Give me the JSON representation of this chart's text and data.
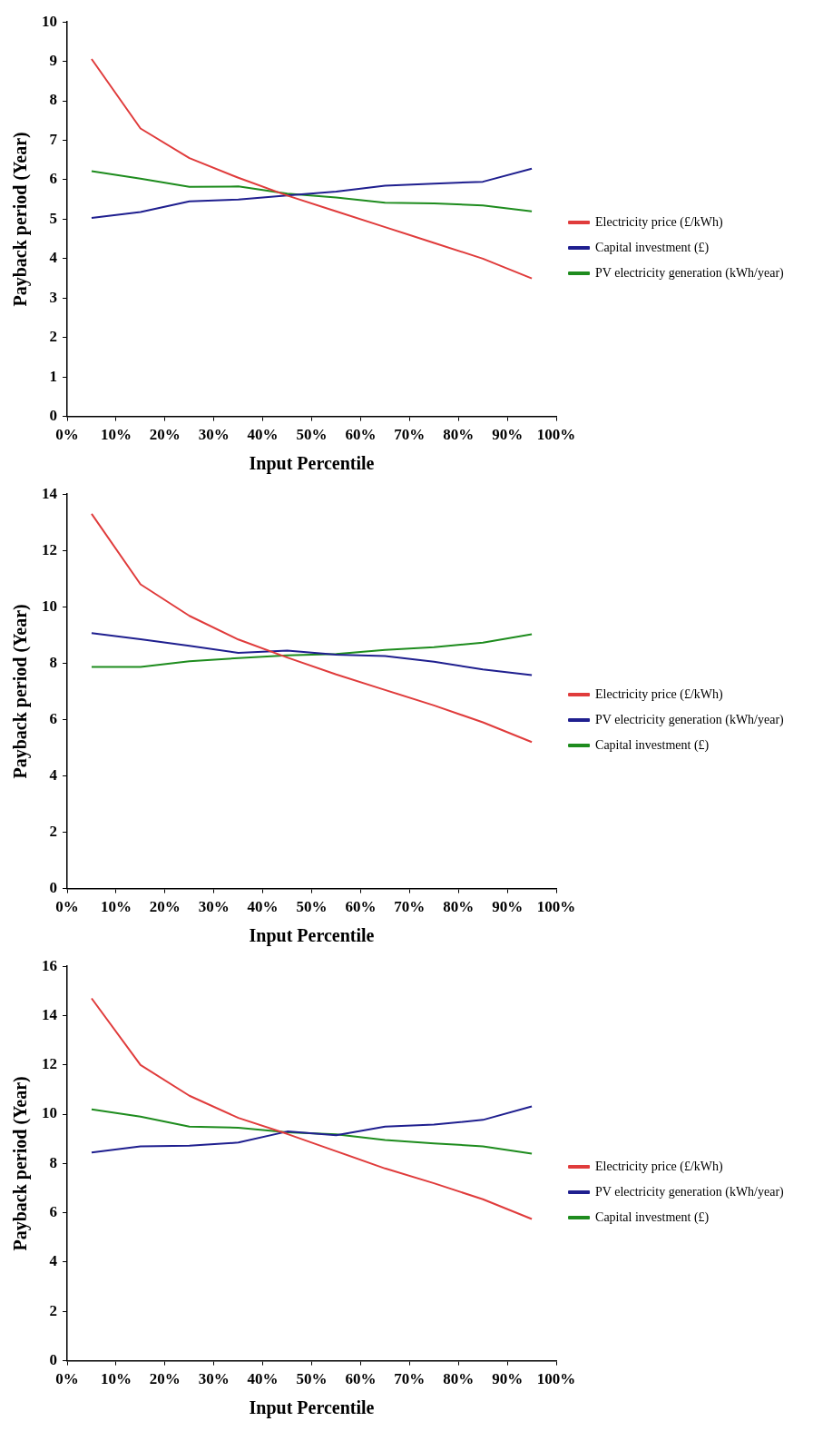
{
  "chart_data": [
    {
      "type": "line",
      "xlabel": "Input Percentile",
      "ylabel": "Payback period (Year)",
      "x": [
        5,
        15,
        25,
        35,
        45,
        55,
        65,
        75,
        85,
        95
      ],
      "xlim": [
        0,
        100
      ],
      "xticks": [
        {
          "value": 0,
          "label": "0%"
        },
        {
          "value": 10,
          "label": "10%"
        },
        {
          "value": 20,
          "label": "20%"
        },
        {
          "value": 30,
          "label": "30%"
        },
        {
          "value": 40,
          "label": "40%"
        },
        {
          "value": 50,
          "label": "50%"
        },
        {
          "value": 60,
          "label": "60%"
        },
        {
          "value": 70,
          "label": "70%"
        },
        {
          "value": 80,
          "label": "80%"
        },
        {
          "value": 90,
          "label": "90%"
        },
        {
          "value": 100,
          "label": "100%"
        }
      ],
      "ylim": [
        0,
        10
      ],
      "yticks": [
        0,
        1,
        2,
        3,
        4,
        5,
        6,
        7,
        8,
        9,
        10
      ],
      "grid": false,
      "legend": "right",
      "marker": "none",
      "line_style": "solid",
      "series": [
        {
          "name": "Electricity price (£/kWh)",
          "color": "#e03c3c",
          "values": [
            9.06,
            7.3,
            6.55,
            6.05,
            5.6,
            5.2,
            4.8,
            4.4,
            4.0,
            3.5
          ]
        },
        {
          "name": "Capital investment (£)",
          "color": "#1f1f8f",
          "values": [
            5.03,
            5.18,
            5.45,
            5.5,
            5.6,
            5.7,
            5.85,
            5.9,
            5.95,
            6.28
          ]
        },
        {
          "name": "PV electricity generation (kWh/year)",
          "color": "#1e8c1e",
          "values": [
            6.22,
            6.03,
            5.82,
            5.83,
            5.65,
            5.55,
            5.42,
            5.4,
            5.35,
            5.2
          ]
        }
      ]
    },
    {
      "type": "line",
      "xlabel": "Input Percentile",
      "ylabel": "Payback period (Year)",
      "x": [
        5,
        15,
        25,
        35,
        45,
        55,
        65,
        75,
        85,
        95
      ],
      "xlim": [
        0,
        100
      ],
      "xticks": [
        {
          "value": 0,
          "label": "0%"
        },
        {
          "value": 10,
          "label": "10%"
        },
        {
          "value": 20,
          "label": "20%"
        },
        {
          "value": 30,
          "label": "30%"
        },
        {
          "value": 40,
          "label": "40%"
        },
        {
          "value": 50,
          "label": "50%"
        },
        {
          "value": 60,
          "label": "60%"
        },
        {
          "value": 70,
          "label": "70%"
        },
        {
          "value": 80,
          "label": "80%"
        },
        {
          "value": 90,
          "label": "90%"
        },
        {
          "value": 100,
          "label": "100%"
        }
      ],
      "ylim": [
        0,
        14
      ],
      "yticks": [
        0,
        2,
        4,
        6,
        8,
        10,
        12,
        14
      ],
      "grid": false,
      "legend": "right",
      "marker": "none",
      "line_style": "solid",
      "series": [
        {
          "name": "Electricity price (£/kWh)",
          "color": "#e03c3c",
          "values": [
            13.3,
            10.8,
            9.68,
            8.84,
            8.2,
            7.6,
            7.05,
            6.5,
            5.9,
            5.2
          ]
        },
        {
          "name": "PV electricity generation (kWh/year)",
          "color": "#1f1f8f",
          "values": [
            9.07,
            8.85,
            8.62,
            8.37,
            8.45,
            8.3,
            8.25,
            8.05,
            7.78,
            7.58
          ]
        },
        {
          "name": "Capital investment (£)",
          "color": "#1e8c1e",
          "values": [
            7.87,
            7.87,
            8.07,
            8.18,
            8.28,
            8.33,
            8.47,
            8.57,
            8.73,
            9.03
          ]
        }
      ]
    },
    {
      "type": "line",
      "xlabel": "Input Percentile",
      "ylabel": "Payback period (Year)",
      "x": [
        5,
        15,
        25,
        35,
        45,
        55,
        65,
        75,
        85,
        95
      ],
      "xlim": [
        0,
        100
      ],
      "xticks": [
        {
          "value": 0,
          "label": "0%"
        },
        {
          "value": 10,
          "label": "10%"
        },
        {
          "value": 20,
          "label": "20%"
        },
        {
          "value": 30,
          "label": "30%"
        },
        {
          "value": 40,
          "label": "40%"
        },
        {
          "value": 50,
          "label": "50%"
        },
        {
          "value": 60,
          "label": "60%"
        },
        {
          "value": 70,
          "label": "70%"
        },
        {
          "value": 80,
          "label": "80%"
        },
        {
          "value": 90,
          "label": "90%"
        },
        {
          "value": 100,
          "label": "100%"
        }
      ],
      "ylim": [
        0,
        16
      ],
      "yticks": [
        0,
        2,
        4,
        6,
        8,
        10,
        12,
        14,
        16
      ],
      "grid": false,
      "legend": "right",
      "marker": "none",
      "line_style": "solid",
      "series": [
        {
          "name": "Electricity price (£/kWh)",
          "color": "#e03c3c",
          "values": [
            14.7,
            12.0,
            10.75,
            9.85,
            9.2,
            8.5,
            7.8,
            7.2,
            6.55,
            5.75
          ]
        },
        {
          "name": "PV electricity generation (kWh/year)",
          "color": "#1f1f8f",
          "values": [
            8.45,
            8.7,
            8.72,
            8.85,
            9.3,
            9.15,
            9.5,
            9.58,
            9.77,
            10.32
          ]
        },
        {
          "name": "Capital investment (£)",
          "color": "#1e8c1e",
          "values": [
            10.2,
            9.9,
            9.5,
            9.45,
            9.27,
            9.18,
            8.95,
            8.82,
            8.7,
            8.4
          ]
        }
      ]
    }
  ]
}
